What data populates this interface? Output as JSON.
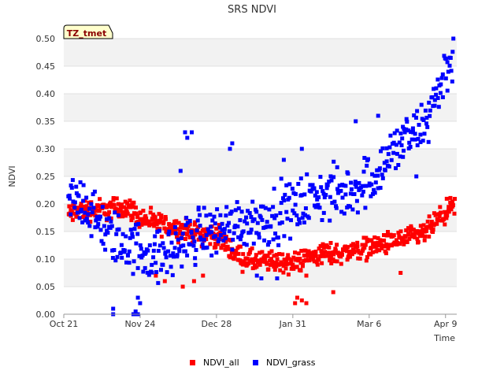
{
  "chart_data": {
    "type": "scatter",
    "title": "SRS NDVI",
    "xlabel": "Time",
    "ylabel": "NDVI",
    "badge": "TZ_tmet",
    "x_unit": "days since Oct 21",
    "xlim": [
      0,
      175
    ],
    "ylim": [
      0,
      0.5
    ],
    "x_ticks": [
      {
        "label": "Oct 21",
        "day": 0
      },
      {
        "label": "Nov 24",
        "day": 34
      },
      {
        "label": "Dec 28",
        "day": 68
      },
      {
        "label": "Jan 31",
        "day": 102
      },
      {
        "label": "Mar 6",
        "day": 136
      },
      {
        "label": "Apr 9",
        "day": 170
      }
    ],
    "y_ticks": [
      "0.00",
      "0.05",
      "0.10",
      "0.15",
      "0.20",
      "0.25",
      "0.30",
      "0.35",
      "0.40",
      "0.45",
      "0.50"
    ],
    "series": [
      {
        "name": "NDVI_all",
        "color": "#ff0000",
        "trend": [
          [
            2,
            0.18
          ],
          [
            8,
            0.19
          ],
          [
            14,
            0.19
          ],
          [
            20,
            0.19
          ],
          [
            26,
            0.195
          ],
          [
            30,
            0.19
          ],
          [
            34,
            0.175
          ],
          [
            40,
            0.165
          ],
          [
            46,
            0.16
          ],
          [
            52,
            0.155
          ],
          [
            56,
            0.15
          ],
          [
            60,
            0.145
          ],
          [
            64,
            0.145
          ],
          [
            68,
            0.14
          ],
          [
            72,
            0.13
          ],
          [
            76,
            0.11
          ],
          [
            80,
            0.1
          ],
          [
            86,
            0.095
          ],
          [
            92,
            0.095
          ],
          [
            98,
            0.095
          ],
          [
            102,
            0.09
          ],
          [
            106,
            0.1
          ],
          [
            110,
            0.105
          ],
          [
            116,
            0.11
          ],
          [
            122,
            0.11
          ],
          [
            128,
            0.115
          ],
          [
            134,
            0.12
          ],
          [
            140,
            0.125
          ],
          [
            146,
            0.13
          ],
          [
            150,
            0.135
          ],
          [
            156,
            0.14
          ],
          [
            160,
            0.145
          ],
          [
            164,
            0.16
          ],
          [
            168,
            0.175
          ],
          [
            172,
            0.19
          ],
          [
            174,
            0.195
          ]
        ],
        "spread": 0.018,
        "points_per_day": 4,
        "outliers": [
          [
            103,
            0.02
          ],
          [
            104,
            0.03
          ],
          [
            106,
            0.025
          ],
          [
            108,
            0.02
          ],
          [
            120,
            0.04
          ],
          [
            41,
            0.07
          ],
          [
            45,
            0.06
          ],
          [
            53,
            0.05
          ],
          [
            58,
            0.06
          ],
          [
            62,
            0.07
          ],
          [
            108,
            0.07
          ],
          [
            150,
            0.075
          ],
          [
            105,
            0.08
          ]
        ]
      },
      {
        "name": "NDVI_grass",
        "color": "#0000ff",
        "trend": [
          [
            2,
            0.2
          ],
          [
            6,
            0.21
          ],
          [
            10,
            0.2
          ],
          [
            14,
            0.17
          ],
          [
            18,
            0.15
          ],
          [
            22,
            0.14
          ],
          [
            26,
            0.13
          ],
          [
            30,
            0.12
          ],
          [
            34,
            0.12
          ],
          [
            38,
            0.11
          ],
          [
            42,
            0.1
          ],
          [
            46,
            0.11
          ],
          [
            50,
            0.12
          ],
          [
            54,
            0.13
          ],
          [
            58,
            0.14
          ],
          [
            62,
            0.15
          ],
          [
            66,
            0.15
          ],
          [
            70,
            0.155
          ],
          [
            74,
            0.16
          ],
          [
            78,
            0.165
          ],
          [
            82,
            0.17
          ],
          [
            86,
            0.17
          ],
          [
            90,
            0.175
          ],
          [
            94,
            0.18
          ],
          [
            98,
            0.19
          ],
          [
            102,
            0.19
          ],
          [
            106,
            0.2
          ],
          [
            110,
            0.21
          ],
          [
            114,
            0.215
          ],
          [
            118,
            0.22
          ],
          [
            122,
            0.215
          ],
          [
            126,
            0.22
          ],
          [
            130,
            0.23
          ],
          [
            134,
            0.24
          ],
          [
            138,
            0.25
          ],
          [
            142,
            0.27
          ],
          [
            146,
            0.29
          ],
          [
            150,
            0.31
          ],
          [
            154,
            0.32
          ],
          [
            158,
            0.33
          ],
          [
            160,
            0.34
          ],
          [
            162,
            0.36
          ],
          [
            164,
            0.38
          ],
          [
            166,
            0.4
          ],
          [
            168,
            0.42
          ],
          [
            170,
            0.44
          ],
          [
            172,
            0.46
          ],
          [
            174,
            0.47
          ]
        ],
        "spread": 0.045,
        "points_per_day": 3,
        "outliers": [
          [
            22,
            0.0
          ],
          [
            22,
            0.01
          ],
          [
            31,
            0.0
          ],
          [
            32,
            0.0
          ],
          [
            32,
            0.005
          ],
          [
            33,
            0.0
          ],
          [
            34,
            0.02
          ],
          [
            33,
            0.03
          ],
          [
            54,
            0.33
          ],
          [
            55,
            0.32
          ],
          [
            57,
            0.33
          ],
          [
            52,
            0.26
          ],
          [
            74,
            0.3
          ],
          [
            75,
            0.31
          ],
          [
            98,
            0.28
          ],
          [
            106,
            0.3
          ],
          [
            130,
            0.35
          ],
          [
            140,
            0.36
          ],
          [
            151,
            0.34
          ],
          [
            157,
            0.25
          ],
          [
            60,
            0.19
          ],
          [
            86,
            0.07
          ],
          [
            88,
            0.065
          ],
          [
            95,
            0.065
          ]
        ]
      }
    ],
    "legend": {
      "position": "bottom-center"
    }
  }
}
